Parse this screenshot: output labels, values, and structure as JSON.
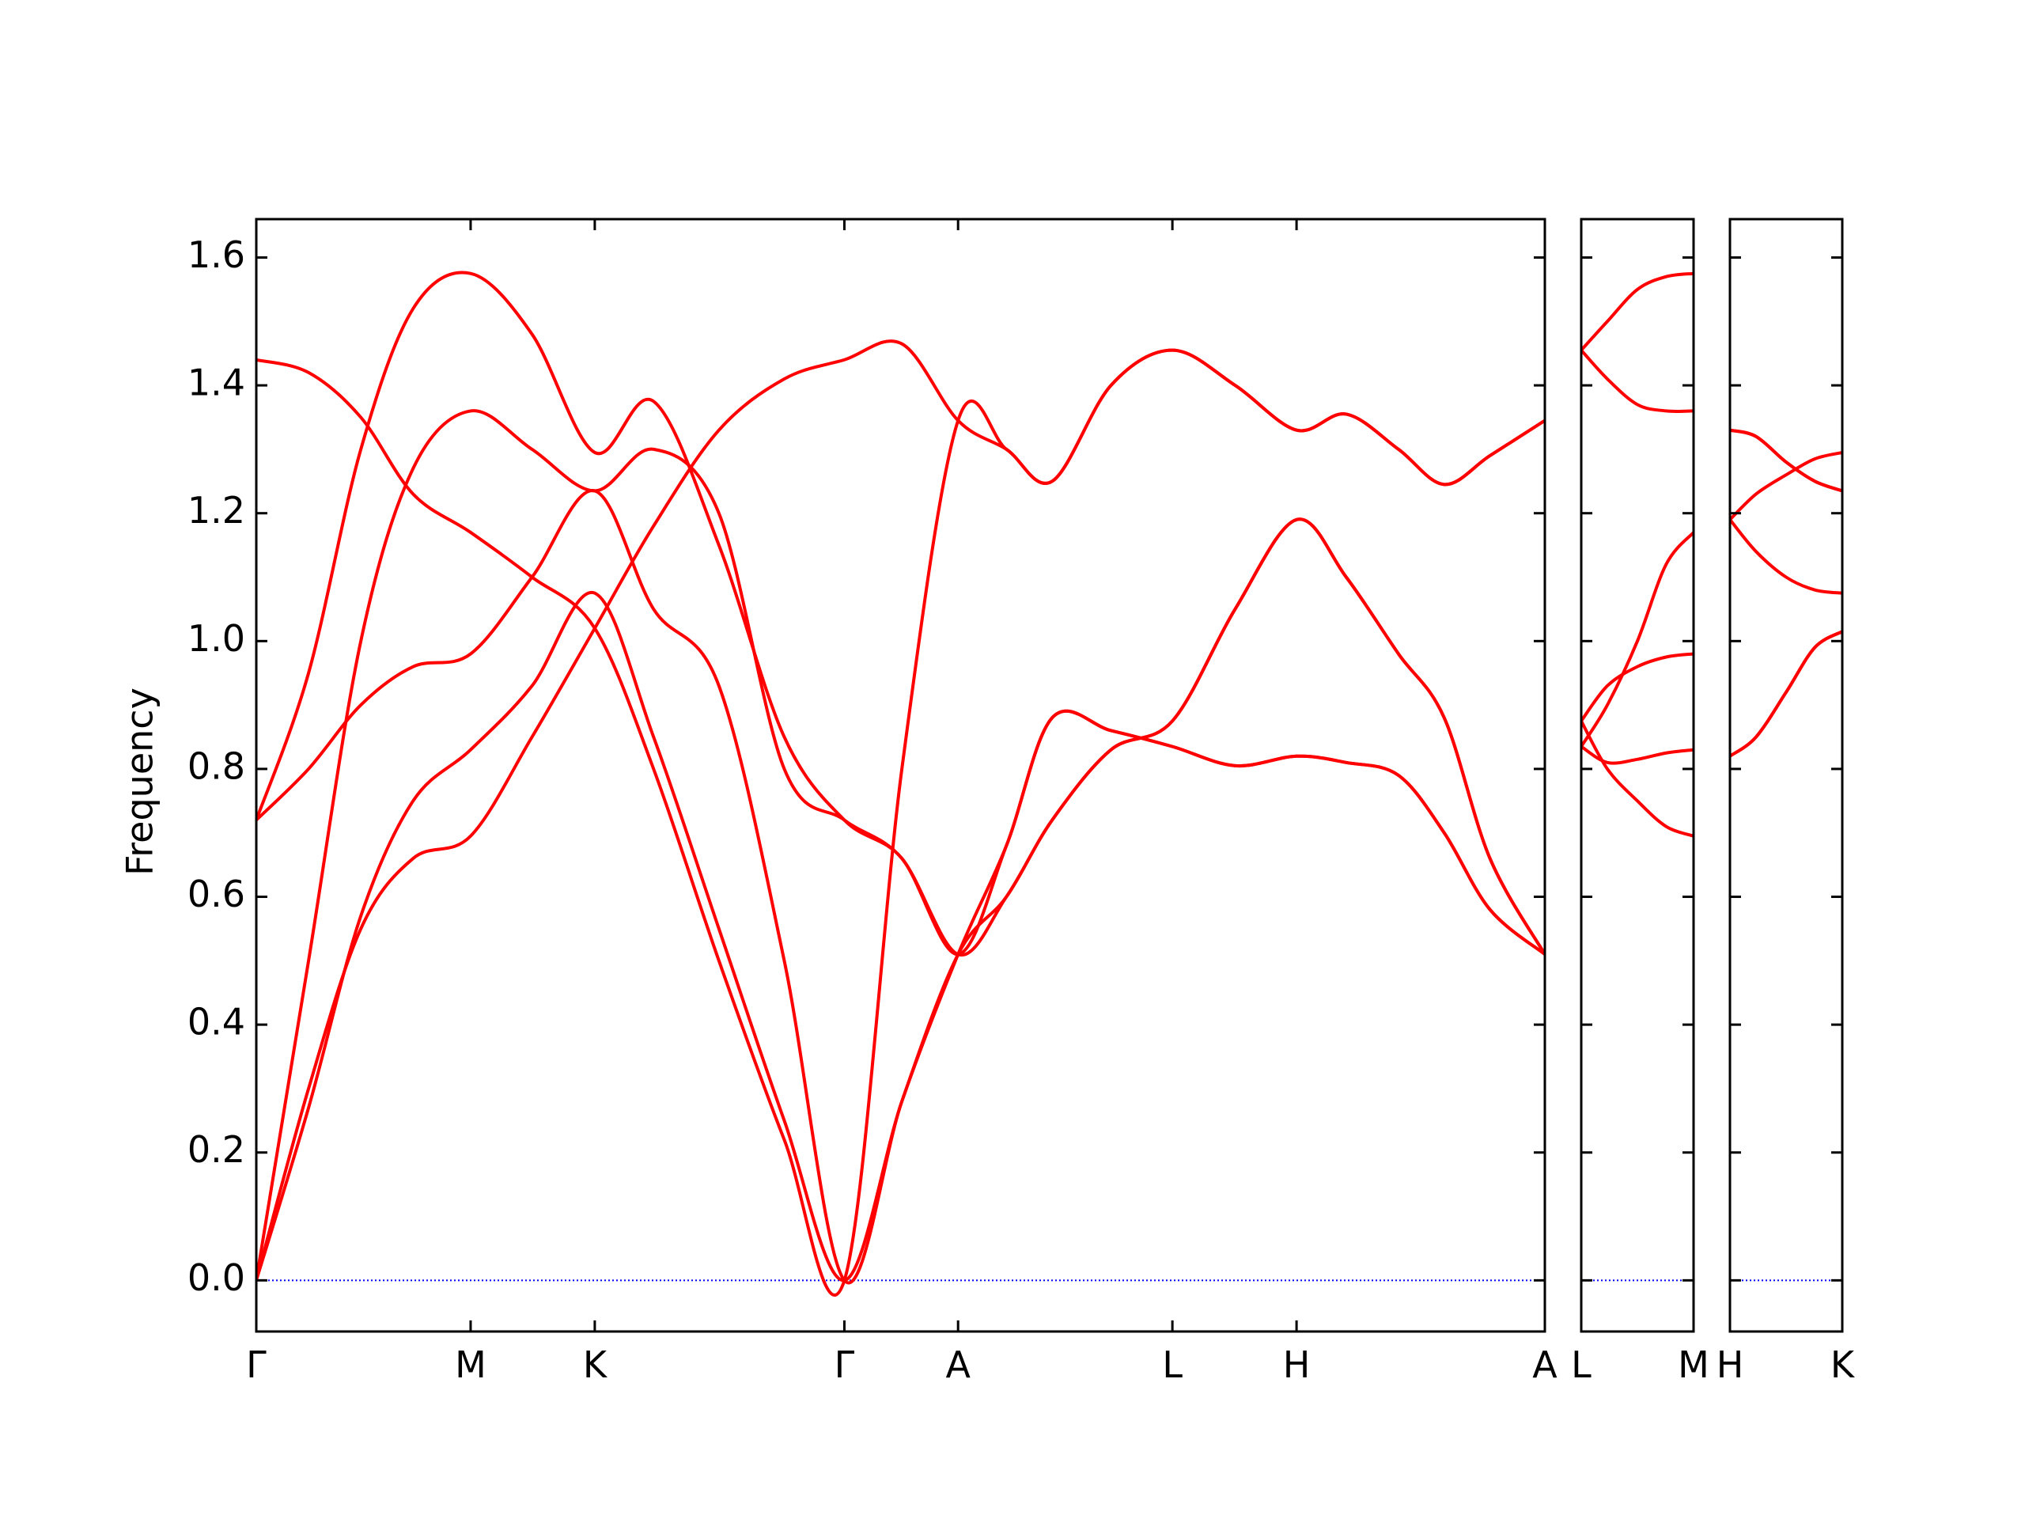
{
  "chart_data": [
    {
      "type": "line",
      "ylabel": "Frequency",
      "show_ytick_labels": true,
      "xlim": [
        0,
        9.86
      ],
      "ylim": [
        -0.08,
        1.66
      ],
      "xticks": [
        {
          "value": 0,
          "label": "Γ"
        },
        {
          "value": 1.64,
          "label": "M"
        },
        {
          "value": 2.59,
          "label": "K"
        },
        {
          "value": 4.5,
          "label": "Γ"
        },
        {
          "value": 5.37,
          "label": "A"
        },
        {
          "value": 7.01,
          "label": "L"
        },
        {
          "value": 7.96,
          "label": "H"
        },
        {
          "value": 9.86,
          "label": "A"
        }
      ],
      "yticks": [
        {
          "value": 0,
          "label": "0.0"
        },
        0.2,
        0.4,
        0.6,
        0.8,
        {
          "value": 1,
          "label": "1.0"
        },
        1.2,
        1.4,
        1.6
      ],
      "hline": {
        "value": 0,
        "color": "#0000ff",
        "style": "dotted"
      },
      "x": [
        0,
        0.4,
        0.8,
        1.2,
        1.64,
        2.11,
        2.59,
        3.04,
        3.54,
        4.04,
        4.5,
        4.94,
        5.37,
        5.74,
        6.09,
        6.54,
        7.01,
        7.49,
        7.96,
        8.34,
        8.74,
        9.09,
        9.44,
        9.86
      ],
      "series": [
        {
          "color": "#ff0000",
          "values": [
            0,
            0.3,
            0.55,
            0.66,
            0.695,
            0.85,
            1.02,
            1.18,
            1.33,
            1.41,
            1.44,
            1.465,
            1.345,
            1.3,
            1.25,
            1.4,
            1.455,
            1.4,
            1.33,
            1.355,
            1.3,
            1.245,
            1.29,
            1.345
          ]
        },
        {
          "color": "#ff0000",
          "values": [
            0,
            0.27,
            0.57,
            0.75,
            0.83,
            0.93,
            1.075,
            0.85,
            0.55,
            0.25,
            0,
            0.28,
            0.51,
            0.68,
            0.88,
            0.86,
            0.835,
            0.805,
            0.82,
            0.81,
            0.79,
            0.7,
            0.58,
            0.51
          ]
        },
        {
          "color": "#ff0000",
          "values": [
            0,
            0.5,
            1.0,
            1.27,
            1.36,
            1.3,
            1.235,
            1.3,
            1.2,
            0.8,
            0.72,
            0.66,
            0.51,
            0.6,
            0.72,
            0.83,
            0.875,
            1.05,
            1.19,
            1.1,
            0.98,
            0.88,
            0.66,
            0.51
          ]
        },
        {
          "color": "#ff0000",
          "values": [
            0.72,
            0.95,
            1.3,
            1.52,
            1.575,
            1.48,
            1.295,
            1.375,
            1.15,
            0.85,
            0.72,
            0.66,
            0.51,
            0.68,
            0.88,
            0.86,
            0.835,
            0.805,
            0.82,
            0.81,
            0.79,
            0.7,
            0.58,
            0.51
          ]
        },
        {
          "color": "#ff0000",
          "values": [
            0.72,
            0.8,
            0.9,
            0.96,
            0.98,
            1.1,
            1.235,
            1.05,
            0.93,
            0.5,
            0,
            0.28,
            0.51,
            0.6,
            0.72,
            0.83,
            0.875,
            1.05,
            1.19,
            1.1,
            0.98,
            0.88,
            0.66,
            0.51
          ]
        },
        {
          "color": "#ff0000",
          "values": [
            1.44,
            1.42,
            1.35,
            1.23,
            1.17,
            1.1,
            1.02,
            0.8,
            0.5,
            0.22,
            0,
            0.8,
            1.345,
            1.3,
            1.25,
            1.4,
            1.455,
            1.4,
            1.33,
            1.355,
            1.3,
            1.245,
            1.29,
            1.345
          ]
        }
      ]
    },
    {
      "type": "line",
      "show_ytick_labels": false,
      "xlim": [
        0,
        0.86
      ],
      "ylim": [
        -0.08,
        1.66
      ],
      "xticks": [
        {
          "value": 0,
          "label": "L"
        },
        {
          "value": 0.86,
          "label": "M"
        }
      ],
      "yticks": [
        0,
        0.2,
        0.4,
        0.6,
        0.8,
        1,
        1.2,
        1.4,
        1.6
      ],
      "hline": {
        "value": 0,
        "color": "#0000ff",
        "style": "dotted"
      },
      "x": [
        0,
        0.2,
        0.43,
        0.65,
        0.86
      ],
      "series": [
        {
          "color": "#ff0000",
          "values": [
            1.455,
            1.5,
            1.55,
            1.57,
            1.575
          ]
        },
        {
          "color": "#ff0000",
          "values": [
            1.455,
            1.41,
            1.37,
            1.36,
            1.36
          ]
        },
        {
          "color": "#ff0000",
          "values": [
            0.835,
            0.9,
            1.0,
            1.12,
            1.17
          ]
        },
        {
          "color": "#ff0000",
          "values": [
            0.875,
            0.93,
            0.96,
            0.975,
            0.98
          ]
        },
        {
          "color": "#ff0000",
          "values": [
            0.835,
            0.81,
            0.815,
            0.825,
            0.83
          ]
        },
        {
          "color": "#ff0000",
          "values": [
            0.875,
            0.8,
            0.75,
            0.71,
            0.695
          ]
        }
      ]
    },
    {
      "type": "line",
      "show_ytick_labels": false,
      "xlim": [
        0,
        0.86
      ],
      "ylim": [
        -0.08,
        1.66
      ],
      "xticks": [
        {
          "value": 0,
          "label": "H"
        },
        {
          "value": 0.86,
          "label": "K"
        }
      ],
      "yticks": [
        0,
        0.2,
        0.4,
        0.6,
        0.8,
        1,
        1.2,
        1.4,
        1.6
      ],
      "hline": {
        "value": 0,
        "color": "#0000ff",
        "style": "dotted"
      },
      "x": [
        0,
        0.2,
        0.43,
        0.65,
        0.86
      ],
      "series": [
        {
          "color": "#ff0000",
          "values": [
            1.33,
            1.32,
            1.28,
            1.25,
            1.235
          ]
        },
        {
          "color": "#ff0000",
          "values": [
            1.33,
            1.32,
            1.28,
            1.25,
            1.235
          ]
        },
        {
          "color": "#ff0000",
          "values": [
            1.19,
            1.23,
            1.26,
            1.285,
            1.295
          ]
        },
        {
          "color": "#ff0000",
          "values": [
            1.19,
            1.14,
            1.1,
            1.08,
            1.075
          ]
        },
        {
          "color": "#ff0000",
          "values": [
            0.82,
            0.85,
            0.92,
            0.99,
            1.015
          ]
        },
        {
          "color": "#ff0000",
          "values": [
            0.82,
            0.85,
            0.92,
            0.99,
            1.015
          ]
        }
      ]
    }
  ]
}
